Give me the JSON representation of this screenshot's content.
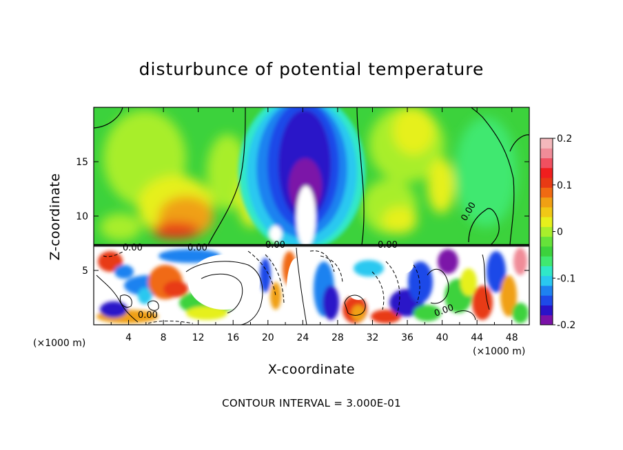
{
  "chart_data": {
    "type": "heatmap",
    "title": "disturbunce of potential temperature",
    "xlabel": "X-coordinate",
    "ylabel": "Z-coordinate",
    "x_unit": "(×1000 m)",
    "z_unit": "(×1000 m)",
    "footer": "CONTOUR INTERVAL = 3.000E-01",
    "xlim": [
      0,
      50
    ],
    "ylim": [
      0,
      20
    ],
    "x_ticks": [
      "4",
      "8",
      "12",
      "16",
      "20",
      "24",
      "28",
      "32",
      "36",
      "40",
      "44",
      "48"
    ],
    "y_ticks": [
      "5",
      "10",
      "15"
    ],
    "colorbar": {
      "range": [
        -0.2,
        0.2
      ],
      "tick_labels": [
        "0.2",
        "0.1",
        "0",
        "-0.1",
        "-0.2"
      ],
      "colors": [
        "#7b12a8",
        "#2a12c8",
        "#1e4ae8",
        "#1e82f0",
        "#2ac8f0",
        "#30e8c8",
        "#40e870",
        "#3cd23c",
        "#66e23a",
        "#a8ee2c",
        "#e6f01c",
        "#f0c816",
        "#f0a014",
        "#f06a12",
        "#e83a14",
        "#f01e1e",
        "#f05060",
        "#f08c98",
        "#f4b8bc"
      ]
    },
    "contour_labels": [
      "0.00",
      "0.00",
      "0.00",
      "0.00",
      "0.00",
      "0.00",
      "0.00"
    ],
    "grid": false
  }
}
